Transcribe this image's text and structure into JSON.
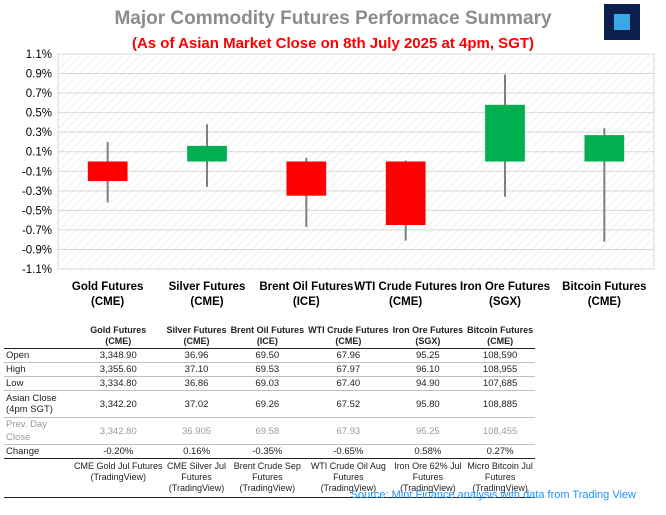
{
  "title": "Major Commodity Futures Performace Summary",
  "subtitle": "(As of Asian Market Close on 8th July 2025 at 4pm, SGT)",
  "chart_data": {
    "type": "candlestick",
    "y_ticks": [
      "1.1%",
      "0.9%",
      "0.7%",
      "0.5%",
      "0.3%",
      "0.1%",
      "-0.1%",
      "-0.3%",
      "-0.5%",
      "-0.7%",
      "-0.9%",
      "-1.1%"
    ],
    "ylim": [
      -1.1,
      1.1
    ],
    "grid": true,
    "colors": {
      "up": "#00b050",
      "down": "#ff0000",
      "wick": "#7f7f7f"
    },
    "candles": [
      {
        "line1": "Gold Futures",
        "line2": "(CME)",
        "open": 0.0,
        "close": -0.2,
        "high": 0.2,
        "low": -0.42
      },
      {
        "line1": "Silver Futures",
        "line2": "(CME)",
        "open": 0.0,
        "close": 0.16,
        "high": 0.38,
        "low": -0.26
      },
      {
        "line1": "Brent Oil Futures",
        "line2": "(ICE)",
        "open": 0.0,
        "close": -0.35,
        "high": 0.04,
        "low": -0.67
      },
      {
        "line1": "WTI Crude Futures",
        "line2": "(CME)",
        "open": 0.0,
        "close": -0.65,
        "high": 0.01,
        "low": -0.81
      },
      {
        "line1": "Iron Ore Futures",
        "line2": "(SGX)",
        "open": 0.0,
        "close": 0.58,
        "high": 0.89,
        "low": -0.36
      },
      {
        "line1": "Bitcoin Futures",
        "line2": "(CME)",
        "open": 0.0,
        "close": 0.27,
        "high": 0.34,
        "low": -0.82
      }
    ]
  },
  "table": {
    "headers": [
      {
        "line1": "Gold Futures",
        "line2": "(CME)"
      },
      {
        "line1": "Silver Futures",
        "line2": "(CME)"
      },
      {
        "line1": "Brent Oil Futures",
        "line2": "(ICE)"
      },
      {
        "line1": "WTI Crude Futures",
        "line2": "(CME)"
      },
      {
        "line1": "Iron Ore Futures",
        "line2": "(SGX)"
      },
      {
        "line1": "Bitcoin Futures",
        "line2": "(CME)"
      }
    ],
    "rows": {
      "open": {
        "label": "Open",
        "values": [
          "3,348.90",
          "36.96",
          "69.50",
          "67.96",
          "95.25",
          "108,590"
        ]
      },
      "high": {
        "label": "High",
        "values": [
          "3,355.60",
          "37.10",
          "69.53",
          "67.97",
          "96.10",
          "108,955"
        ]
      },
      "low": {
        "label": "Low",
        "values": [
          "3,334.80",
          "36.86",
          "69.03",
          "67.40",
          "94.90",
          "107,685"
        ]
      },
      "close": {
        "label1": "Asian Close",
        "label2": "(4pm SGT)",
        "values": [
          "3,342.20",
          "37.02",
          "69.26",
          "67.52",
          "95.80",
          "108,885"
        ]
      },
      "prev": {
        "label": "Prev. Day Close",
        "values": [
          "3,342.80",
          "36.905",
          "69.58",
          "67.93",
          "95.25",
          "108,455"
        ]
      },
      "change": {
        "label": "Change",
        "values": [
          "-0.20%",
          "0.16%",
          "-0.35%",
          "-0.65%",
          "0.58%",
          "0.27%"
        ]
      }
    },
    "sources": [
      {
        "line1": "CME Gold Jul Futures",
        "line2": "(TradingView)",
        "line3": ""
      },
      {
        "line1": "CME Silver Jul",
        "line2": "Futures",
        "line3": "(TradingView)"
      },
      {
        "line1": "Brent Crude Sep",
        "line2": "Futures",
        "line3": "(TradingView)"
      },
      {
        "line1": "WTI Crude Oil Aug",
        "line2": "Futures",
        "line3": "(TradingView)"
      },
      {
        "line1": "Iron Ore 62% Jul",
        "line2": "Futures",
        "line3": "(TradingView)"
      },
      {
        "line1": "Micro Bitcoin Jul",
        "line2": "Futures",
        "line3": "(TradingView)"
      }
    ]
  },
  "source_note": "Source: Mint Finance analysis with data from Trading View"
}
